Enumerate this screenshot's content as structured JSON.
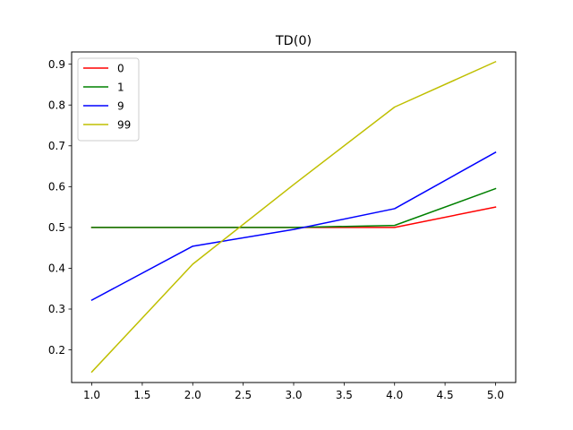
{
  "chart_data": {
    "type": "line",
    "title": "TD(0)",
    "xlabel": "",
    "ylabel": "",
    "x": [
      1.0,
      2.0,
      3.0,
      4.0,
      5.0
    ],
    "xlim": [
      0.8,
      5.2
    ],
    "ylim": [
      0.12,
      0.93
    ],
    "xticks": [
      1.0,
      1.5,
      2.0,
      2.5,
      3.0,
      3.5,
      4.0,
      4.5,
      5.0
    ],
    "xtick_labels": [
      "1.0",
      "1.5",
      "2.0",
      "2.5",
      "3.0",
      "3.5",
      "4.0",
      "4.5",
      "5.0"
    ],
    "yticks": [
      0.2,
      0.3,
      0.4,
      0.5,
      0.6,
      0.7,
      0.8,
      0.9
    ],
    "ytick_labels": [
      "0.2",
      "0.3",
      "0.4",
      "0.5",
      "0.6",
      "0.7",
      "0.8",
      "0.9"
    ],
    "grid": false,
    "legend_position": "top-left",
    "series": [
      {
        "name": "0",
        "color": "#ff0000",
        "values": [
          0.5,
          0.5,
          0.5,
          0.5,
          0.55
        ]
      },
      {
        "name": "1",
        "color": "#008000",
        "values": [
          0.5,
          0.5,
          0.5,
          0.505,
          0.595
        ]
      },
      {
        "name": "9",
        "color": "#0000ff",
        "values": [
          0.322,
          0.454,
          0.495,
          0.546,
          0.684
        ]
      },
      {
        "name": "99",
        "color": "#bfbf00",
        "values": [
          0.146,
          0.41,
          0.605,
          0.795,
          0.906
        ]
      }
    ]
  }
}
